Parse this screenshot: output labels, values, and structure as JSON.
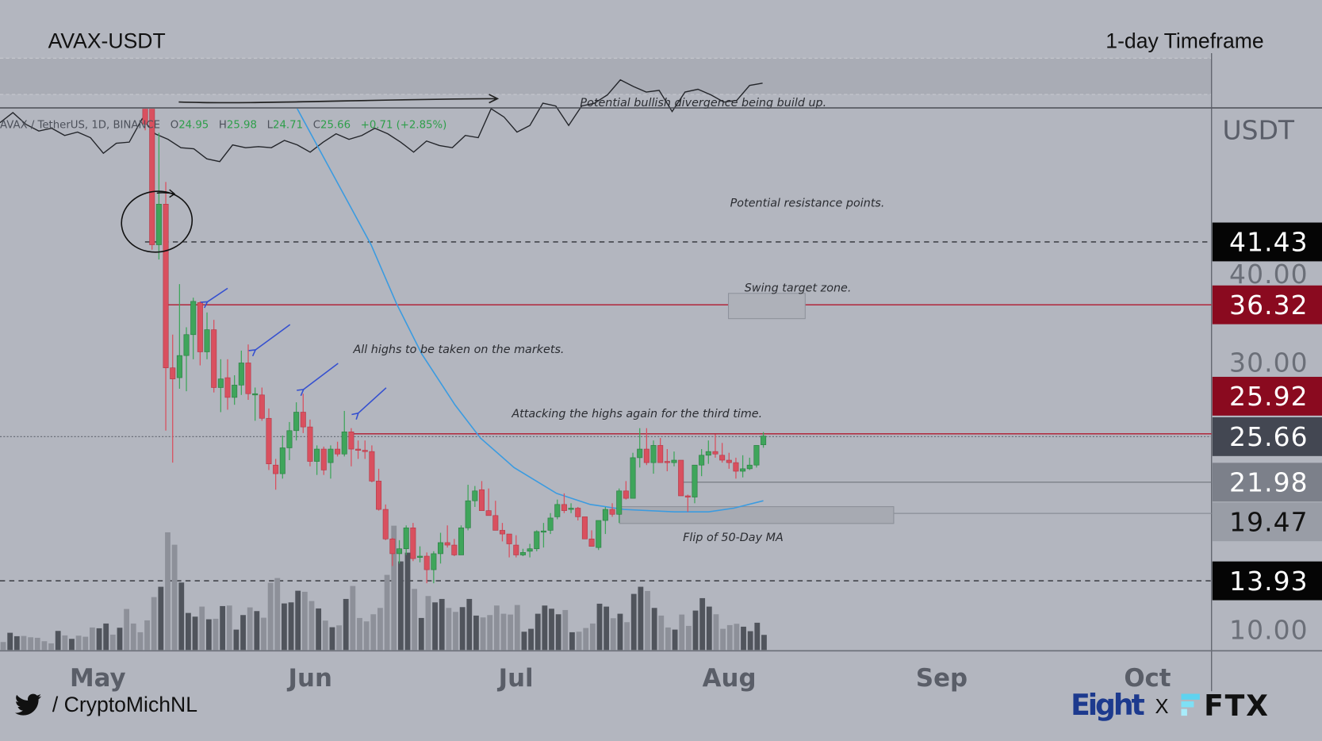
{
  "header": {
    "symbol_title": "AVAX-USDT",
    "timeframe_title": "1-day Timeframe"
  },
  "legend": {
    "instrument": "AVAX / TetherUS, 1D, BINANCE",
    "open_label": "O",
    "open": "24.95",
    "high_label": "H",
    "high": "25.98",
    "low_label": "L",
    "low": "24.71",
    "close_label": "C",
    "close": "25.66",
    "change": "+0.71 (+2.85%)"
  },
  "price_axis": {
    "currency": "USDT",
    "ticks": [
      "40.00",
      "30.00",
      "10.00"
    ],
    "markers": [
      {
        "value": "41.43",
        "bg": "#050505",
        "fg": "#ffffff"
      },
      {
        "value": "36.32",
        "bg": "#8a0a1f",
        "fg": "#ffffff"
      },
      {
        "value": "25.92",
        "bg": "#8a0a1f",
        "fg": "#ffffff"
      },
      {
        "value": "25.66",
        "bg": "#434752",
        "fg": "#ffffff"
      },
      {
        "value": "21.98",
        "bg": "#7c808a",
        "fg": "#ffffff"
      },
      {
        "value": "19.47",
        "bg": "#999da6",
        "fg": "#111111"
      },
      {
        "value": "13.93",
        "bg": "#050505",
        "fg": "#ffffff"
      }
    ]
  },
  "time_axis": {
    "months": [
      "May",
      "Jun",
      "Jul",
      "Aug",
      "Sep",
      "Oct"
    ]
  },
  "annotations": {
    "divergence": "Potential bullish divergence being build up.",
    "resistance": "Potential resistance points.",
    "swing_target": "Swing target zone.",
    "all_highs": "All highs to be taken on the markets.",
    "attacking": "Attacking the highs again for the third time.",
    "flip_ma": "Flip of 50-Day MA"
  },
  "footer": {
    "twitter_handle": "/ CryptoMichNL",
    "brand_eight": "Eight",
    "brand_x": "X",
    "brand_ftx": "FTX"
  },
  "colors": {
    "up": "#3fa55b",
    "down": "#d9505f",
    "ma": "#3b9be0",
    "resistance_line": "#b0182e",
    "eight_blue": "#1d3a8e",
    "ftx_cyan": "#5fd3ef"
  },
  "chart_data": {
    "type": "candlestick",
    "title": "AVAX-USDT",
    "xlabel": "",
    "ylabel": "USDT",
    "x_ticks": [
      "May",
      "Jun",
      "Jul",
      "Aug",
      "Sep",
      "Oct"
    ],
    "y_ticks": [
      10,
      30,
      40
    ],
    "ylim": [
      8,
      53
    ],
    "candle_fields": [
      "open",
      "high",
      "low",
      "close"
    ],
    "candles": [
      [
        52.5,
        53.5,
        50.5,
        51.0
      ],
      [
        55.0,
        56.0,
        40.8,
        41.2
      ],
      [
        41.2,
        50.3,
        40.0,
        44.5
      ],
      [
        44.5,
        46.3,
        26.1,
        31.2
      ],
      [
        31.2,
        33.9,
        23.5,
        30.3
      ],
      [
        30.4,
        38.0,
        29.5,
        32.2
      ],
      [
        32.2,
        34.5,
        29.3,
        33.9
      ],
      [
        33.9,
        36.9,
        31.9,
        36.6
      ],
      [
        36.5,
        36.6,
        31.4,
        32.5
      ],
      [
        32.5,
        35.7,
        31.9,
        34.3
      ],
      [
        34.3,
        35.1,
        29.2,
        29.6
      ],
      [
        29.6,
        31.9,
        27.6,
        30.3
      ],
      [
        30.4,
        31.9,
        27.8,
        28.8
      ],
      [
        28.8,
        30.6,
        28.2,
        29.8
      ],
      [
        29.8,
        32.6,
        29.0,
        31.6
      ],
      [
        31.6,
        33.1,
        28.6,
        29.1
      ],
      [
        29.0,
        29.6,
        26.9,
        29.1
      ],
      [
        29.0,
        29.6,
        26.9,
        27.1
      ],
      [
        27.1,
        27.9,
        22.9,
        23.4
      ],
      [
        23.3,
        23.8,
        21.3,
        22.6
      ],
      [
        22.6,
        25.7,
        22.2,
        24.7
      ],
      [
        24.7,
        26.8,
        23.7,
        26.1
      ],
      [
        26.1,
        28.4,
        25.3,
        27.6
      ],
      [
        27.6,
        29.1,
        25.9,
        26.4
      ],
      [
        26.4,
        27.0,
        23.2,
        23.6
      ],
      [
        23.6,
        24.9,
        22.5,
        24.6
      ],
      [
        24.6,
        24.8,
        22.5,
        22.9
      ],
      [
        23.5,
        24.9,
        22.2,
        24.6
      ],
      [
        24.6,
        25.2,
        24.0,
        24.2
      ],
      [
        24.2,
        27.7,
        24.0,
        26.0
      ],
      [
        26.0,
        26.3,
        23.2,
        24.6
      ],
      [
        24.6,
        25.3,
        23.8,
        24.5
      ],
      [
        24.5,
        25.3,
        23.8,
        24.4
      ],
      [
        24.4,
        24.9,
        21.9,
        22.0
      ],
      [
        22.0,
        23.0,
        19.6,
        19.7
      ],
      [
        19.7,
        20.1,
        17.2,
        17.3
      ],
      [
        17.3,
        17.4,
        15.1,
        16.1
      ],
      [
        16.1,
        17.2,
        15.3,
        16.5
      ],
      [
        16.5,
        18.4,
        16.0,
        18.2
      ],
      [
        18.2,
        18.6,
        15.5,
        15.7
      ],
      [
        15.8,
        16.7,
        15.4,
        15.9
      ],
      [
        15.9,
        16.2,
        13.7,
        14.8
      ],
      [
        14.8,
        16.3,
        13.7,
        16.1
      ],
      [
        16.1,
        17.8,
        15.3,
        17.0
      ],
      [
        17.0,
        18.4,
        16.6,
        16.8
      ],
      [
        16.8,
        17.3,
        15.9,
        16.0
      ],
      [
        16.0,
        18.4,
        16.0,
        18.2
      ],
      [
        18.2,
        21.7,
        18.0,
        20.4
      ],
      [
        20.4,
        21.6,
        19.9,
        21.2
      ],
      [
        21.3,
        22.0,
        19.6,
        19.6
      ],
      [
        19.6,
        21.4,
        19.2,
        19.2
      ],
      [
        19.2,
        20.4,
        18.0,
        18.0
      ],
      [
        18.0,
        18.6,
        17.1,
        17.7
      ],
      [
        17.7,
        17.7,
        15.8,
        16.9
      ],
      [
        16.8,
        17.6,
        15.8,
        16.0
      ],
      [
        16.0,
        16.5,
        15.9,
        16.2
      ],
      [
        16.3,
        16.9,
        15.8,
        16.5
      ],
      [
        16.5,
        18.0,
        16.3,
        17.9
      ],
      [
        17.9,
        18.6,
        16.6,
        17.95
      ],
      [
        18.0,
        19.4,
        17.7,
        19.0
      ],
      [
        19.1,
        20.5,
        18.9,
        20.1
      ],
      [
        20.1,
        21.0,
        19.4,
        19.6
      ],
      [
        19.7,
        20.2,
        19.4,
        19.8
      ],
      [
        19.8,
        19.9,
        18.8,
        19.1
      ],
      [
        19.1,
        19.1,
        17.3,
        17.3
      ],
      [
        17.3,
        18.0,
        16.7,
        16.7
      ],
      [
        16.6,
        18.8,
        16.4,
        18.8
      ],
      [
        18.8,
        19.9,
        17.7,
        19.7
      ],
      [
        19.7,
        20.2,
        19.1,
        19.3
      ],
      [
        19.3,
        21.4,
        18.6,
        21.2
      ],
      [
        21.2,
        22.0,
        20.5,
        20.6
      ],
      [
        20.6,
        24.3,
        20.6,
        23.9
      ],
      [
        23.9,
        26.3,
        23.1,
        24.6
      ],
      [
        24.6,
        26.3,
        23.3,
        23.5
      ],
      [
        23.5,
        25.3,
        22.6,
        24.9
      ],
      [
        24.9,
        25.5,
        23.5,
        23.5
      ],
      [
        23.6,
        24.6,
        22.8,
        23.5
      ],
      [
        23.5,
        24.4,
        23.2,
        23.7
      ],
      [
        23.7,
        23.7,
        20.8,
        20.8
      ],
      [
        20.8,
        20.9,
        19.5,
        20.7
      ],
      [
        20.7,
        23.3,
        20.2,
        23.3
      ],
      [
        23.3,
        24.6,
        22.4,
        24.1
      ],
      [
        24.1,
        25.3,
        23.4,
        24.4
      ],
      [
        24.4,
        25.8,
        23.9,
        24.2
      ],
      [
        24.1,
        25.1,
        23.5,
        23.7
      ],
      [
        23.7,
        24.3,
        23.0,
        23.5
      ],
      [
        23.5,
        23.9,
        22.2,
        22.8
      ],
      [
        22.8,
        24.1,
        22.3,
        23.0
      ],
      [
        23.0,
        23.9,
        22.9,
        23.3
      ],
      [
        23.3,
        24.9,
        23.1,
        24.9
      ],
      [
        24.95,
        25.98,
        24.71,
        25.66
      ]
    ],
    "volume_relative": [
      30,
      65,
      52,
      53,
      48,
      46,
      33,
      25,
      72,
      55,
      42,
      54,
      50,
      85,
      82,
      100,
      58,
      84,
      155,
      100,
      67,
      112,
      200,
      239,
      445,
      398,
      255,
      140,
      126,
      164,
      116,
      118,
      166,
      168,
      77,
      132,
      161,
      147,
      122,
      254,
      272,
      176,
      180,
      224,
      220,
      185,
      157,
      111,
      86,
      93,
      193,
      242,
      121,
      108,
      135,
      159,
      284,
      470,
      335,
      368,
      231,
      121,
      204,
      180,
      193,
      159,
      144,
      162,
      193,
      130,
      123,
      132,
      168,
      137,
      134,
      170,
      69,
      80,
      137,
      168,
      156,
      135,
      151,
      67,
      69,
      83,
      100,
      175,
      164,
      120,
      137,
      105,
      212,
      239,
      223,
      159,
      130,
      85,
      77,
      134,
      91,
      149,
      196,
      164,
      135,
      80,
      94,
      99,
      88,
      71,
      103,
      57
    ],
    "volume_tone": [
      "l",
      "d",
      "d",
      "l",
      "l",
      "l",
      "l",
      "l",
      "d",
      "l",
      "d",
      "l",
      "l",
      "l",
      "d",
      "d",
      "l",
      "d",
      "l",
      "l",
      "l",
      "l",
      "l",
      "d",
      "l",
      "l",
      "d",
      "d",
      "d",
      "l",
      "d",
      "l",
      "d",
      "l",
      "d",
      "d",
      "l",
      "d",
      "l",
      "l",
      "l",
      "d",
      "d",
      "d",
      "l",
      "l",
      "d",
      "l",
      "d",
      "l",
      "d",
      "l",
      "l",
      "l",
      "l",
      "l",
      "l",
      "l",
      "d",
      "d",
      "l",
      "d",
      "l",
      "d",
      "d",
      "l",
      "l",
      "d",
      "d",
      "d",
      "l",
      "l",
      "l",
      "l",
      "l",
      "l",
      "d",
      "d",
      "d",
      "d",
      "d",
      "d",
      "l",
      "d",
      "l",
      "l",
      "l",
      "d",
      "d",
      "l",
      "d",
      "l",
      "d",
      "d",
      "l",
      "d",
      "l",
      "l",
      "d",
      "l",
      "l",
      "d",
      "d",
      "d",
      "l",
      "l",
      "l",
      "l",
      "d",
      "d",
      "d",
      "d"
    ],
    "ma50_label": "50-Day MA",
    "ma50_points_candle_index_price": [
      [
        22.1,
        52.3
      ],
      [
        25.5,
        48.8
      ],
      [
        29.2,
        45.0
      ],
      [
        32.9,
        41.2
      ],
      [
        36.6,
        36.4
      ],
      [
        40.3,
        32.3
      ],
      [
        45.1,
        28.2
      ],
      [
        48.8,
        25.5
      ],
      [
        53.7,
        23.1
      ],
      [
        59.9,
        21.0
      ],
      [
        64.8,
        20.1
      ],
      [
        69.7,
        19.7
      ],
      [
        77.1,
        19.5
      ],
      [
        82.0,
        19.5
      ],
      [
        85.7,
        19.8
      ],
      [
        90,
        20.4
      ]
    ],
    "oscillator_relative": [
      75,
      93,
      72,
      60,
      65,
      52,
      58,
      48,
      20,
      38,
      40,
      82,
      55,
      45,
      30,
      28,
      10,
      5,
      35,
      30,
      32,
      30,
      43,
      35,
      22,
      40,
      55,
      45,
      52,
      65,
      55,
      40,
      22,
      42,
      34,
      30,
      52,
      48,
      100,
      85,
      58,
      70,
      110,
      105,
      70,
      105,
      110,
      125,
      152,
      140,
      130,
      133,
      95,
      130,
      135,
      125,
      112,
      115,
      142,
      146
    ],
    "levels": {
      "dashed": [
        41.43,
        13.93
      ],
      "red": [
        36.32,
        25.92
      ],
      "grey": [
        21.98,
        19.47
      ],
      "current_dotted": 25.66
    },
    "zones": {
      "swing_target": [
        35.2,
        37.3
      ],
      "flip_ma": [
        19.47,
        20.85
      ]
    },
    "grid": false,
    "legend": "top-left"
  }
}
